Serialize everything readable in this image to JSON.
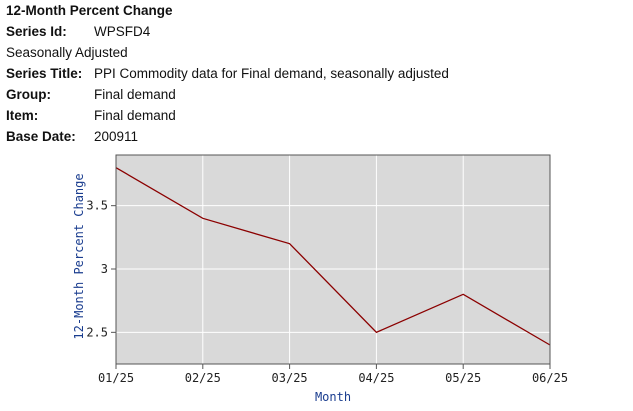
{
  "header": {
    "title": "12-Month Percent Change",
    "series_id_label": "Series Id:",
    "series_id_value": "WPSFD4",
    "adjustment": "Seasonally Adjusted",
    "series_title_label": "Series Title:",
    "series_title_value": "PPI Commodity data for Final demand, seasonally adjusted",
    "group_label": "Group:",
    "group_value": "Final demand",
    "item_label": "Item:",
    "item_value": "Final demand",
    "base_date_label": "Base Date:",
    "base_date_value": "200911"
  },
  "chart_data": {
    "type": "line",
    "categories": [
      "01/25",
      "02/25",
      "03/25",
      "04/25",
      "05/25",
      "06/25"
    ],
    "series": [
      {
        "values": [
          3.8,
          3.4,
          3.2,
          2.5,
          2.8,
          2.4
        ]
      }
    ],
    "xlabel": "Month",
    "ylabel": "12-Month Percent Change",
    "ylim": [
      2.25,
      3.9
    ],
    "yticks": [
      2.5,
      3,
      3.5
    ],
    "ytick_labels": [
      "2.5",
      "3",
      "3.5"
    ],
    "grid": true,
    "colors": {
      "plot_background": "#d9d9d9",
      "line": "#8b0000",
      "grid": "#ffffff",
      "axis_title": "#1a3d8f"
    }
  }
}
